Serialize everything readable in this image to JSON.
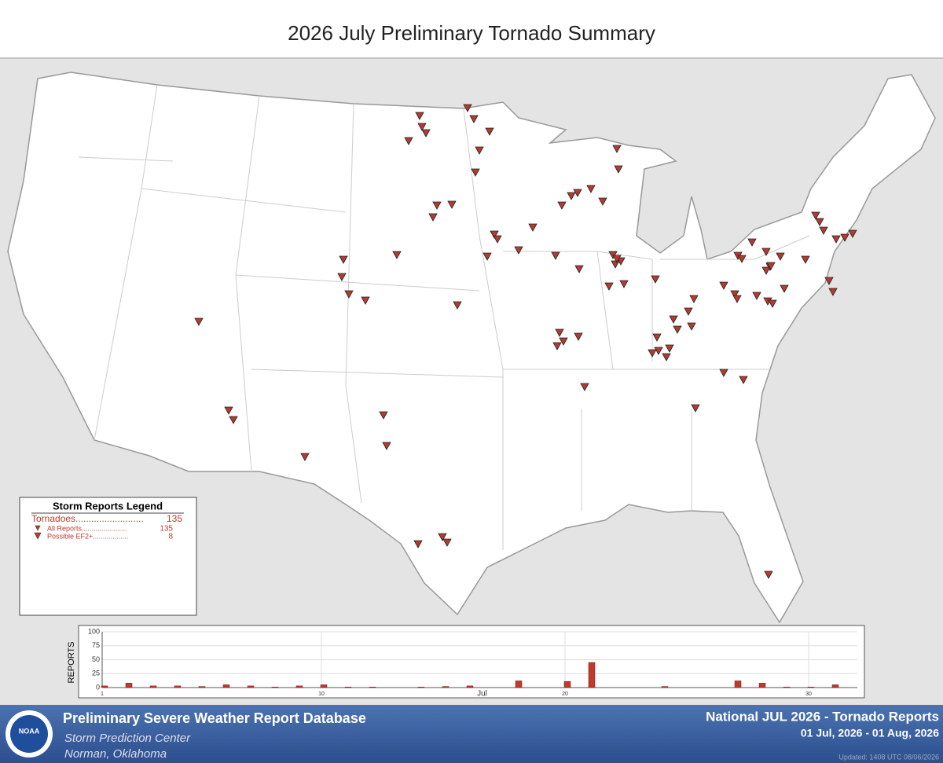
{
  "header": {
    "title": "2026 July Preliminary Tornado Summary"
  },
  "legend": {
    "title": "Storm Reports Legend",
    "rows": [
      [
        "Tornadoes..........................",
        "135"
      ],
      [
        "All Reports.......................",
        "135"
      ],
      [
        "Possible EF2+..................",
        "8"
      ]
    ]
  },
  "chart_data": {
    "type": "bar",
    "y_label": "REPORTS",
    "x_label": "Jul",
    "color": "#c0392b",
    "x": [
      1,
      2,
      3,
      4,
      5,
      6,
      7,
      8,
      9,
      10,
      11,
      12,
      13,
      14,
      15,
      16,
      17,
      18,
      19,
      20,
      21,
      22,
      23,
      24,
      25,
      26,
      27,
      28,
      29,
      30,
      31
    ],
    "values": [
      3,
      8,
      3,
      3,
      2,
      5,
      3,
      1,
      3,
      5,
      1,
      1,
      0,
      1,
      2,
      3,
      0,
      12,
      0,
      11,
      45,
      0,
      0,
      2,
      0,
      0,
      12,
      8,
      1,
      1,
      5
    ],
    "xlim": [
      1,
      32
    ],
    "xticks": [
      1,
      10,
      20,
      30
    ],
    "ylim": [
      0,
      100
    ],
    "yticks": [
      0,
      25,
      50,
      75,
      100
    ],
    "grid": true
  },
  "footer": {
    "database": "Preliminary Severe Weather Report Database",
    "center": "Storm Prediction Center",
    "location": "Norman, Oklahoma",
    "report": "National JUL 2026 - Tornado Reports",
    "range": "01 Jul, 2026 - 01 Aug, 2026",
    "updated": "Updated: 1408 UTC 08/06/2026",
    "logo": "NOAA"
  }
}
